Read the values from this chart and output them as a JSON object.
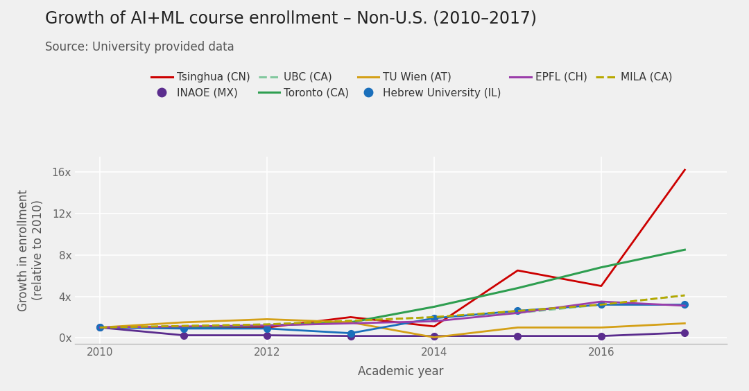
{
  "title": "Growth of AI+ML course enrollment – Non-U.S. (2010–2017)",
  "subtitle": "Source: University provided data",
  "xlabel": "Academic year",
  "ylabel": "Growth in enrollment\n(relative to 2010)",
  "years": [
    2010,
    2011,
    2012,
    2013,
    2014,
    2015,
    2016,
    2017
  ],
  "series": [
    {
      "label": "Tsinghua (CN)",
      "color": "#cc0000",
      "linestyle": "solid",
      "linewidth": 2.0,
      "marker": "s",
      "markersize": 0,
      "values": [
        1,
        1.0,
        1.0,
        2.0,
        1.1,
        6.5,
        5.0,
        16.2
      ]
    },
    {
      "label": "INAOE (MX)",
      "color": "#5b2d8e",
      "linestyle": "solid",
      "linewidth": 2.0,
      "marker": "o",
      "markersize": 7,
      "values": [
        1,
        0.25,
        0.25,
        0.18,
        0.18,
        0.18,
        0.18,
        0.5
      ]
    },
    {
      "label": "UBC (CA)",
      "color": "#82c89e",
      "linestyle": "dashed",
      "linewidth": 2.0,
      "marker": null,
      "values": [
        1,
        1.15,
        1.3,
        1.65,
        2.0,
        2.4,
        3.2,
        4.1
      ]
    },
    {
      "label": "Toronto (CA)",
      "color": "#2e9e50",
      "linestyle": "solid",
      "linewidth": 2.2,
      "marker": null,
      "values": [
        1,
        1.0,
        1.2,
        1.5,
        3.0,
        4.8,
        6.8,
        8.5
      ]
    },
    {
      "label": "TU Wien (AT)",
      "color": "#d4a017",
      "linestyle": "solid",
      "linewidth": 2.0,
      "marker": null,
      "values": [
        1,
        1.5,
        1.8,
        1.5,
        0.05,
        1.0,
        1.0,
        1.4
      ]
    },
    {
      "label": "Hebrew University (IL)",
      "color": "#1a6fbb",
      "linestyle": "solid",
      "linewidth": 2.0,
      "marker": "o",
      "markersize": 7,
      "values": [
        1,
        0.9,
        0.9,
        0.45,
        1.9,
        2.6,
        3.2,
        3.2
      ]
    },
    {
      "label": "EPFL (CH)",
      "color": "#9b3daa",
      "linestyle": "solid",
      "linewidth": 2.0,
      "marker": null,
      "values": [
        1,
        1.1,
        1.2,
        1.4,
        1.6,
        2.4,
        3.5,
        3.1
      ]
    },
    {
      "label": "MILA (CA)",
      "color": "#b8a800",
      "linestyle": "dashed",
      "linewidth": 2.0,
      "marker": null,
      "values": [
        1,
        1.15,
        1.3,
        1.65,
        2.0,
        2.6,
        3.2,
        4.1
      ]
    }
  ],
  "yticks": [
    0,
    4,
    8,
    12,
    16
  ],
  "ytick_labels": [
    "0x",
    "4x",
    "8x",
    "12x",
    "16x"
  ],
  "ylim": [
    -0.6,
    17.5
  ],
  "xlim": [
    2009.7,
    2017.5
  ],
  "bg_color": "#f0f0f0",
  "grid_color": "#ffffff",
  "title_fontsize": 17,
  "subtitle_fontsize": 12,
  "axis_label_fontsize": 12,
  "tick_fontsize": 11,
  "legend_fontsize": 11
}
